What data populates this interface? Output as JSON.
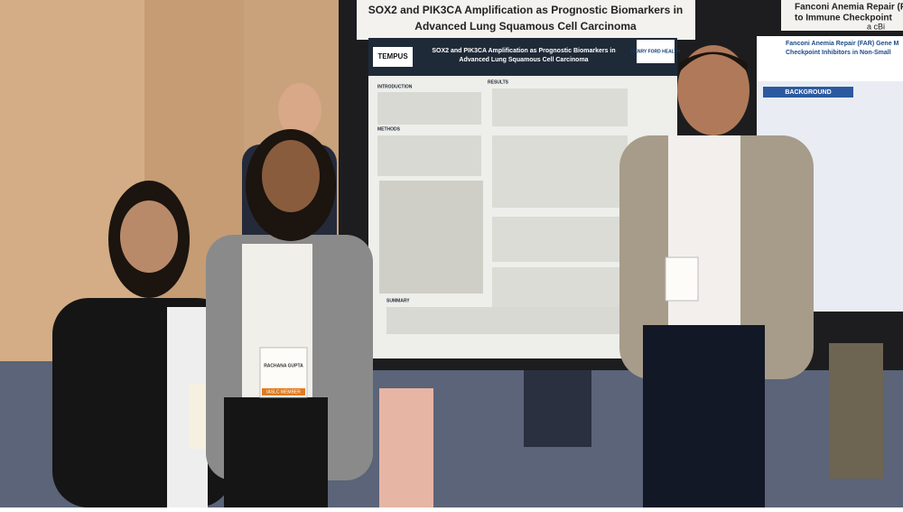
{
  "scene": {
    "sign_left": {
      "line1": "SOX2 and PIK3CA Amplification as Prognostic Biomarkers in",
      "line2": "Advanced Lung Squamous Cell Carcinoma"
    },
    "sign_right": {
      "line1": "Fanconi Anemia Repair (FAR)",
      "line2": "to Immune Checkpoint",
      "line3": "a cBi"
    },
    "poster": {
      "logo_left": "TEMPUS",
      "logo_right": "HENRY FORD HEALTH",
      "title_line1": "SOX2 and PIK3CA Amplification as Prognostic Biomarkers in",
      "title_line2": "Advanced Lung Squamous Cell Carcinoma",
      "sections": [
        "INTRODUCTION",
        "METHODS",
        "RESULTS",
        "SUMMARY"
      ]
    },
    "poster_right": {
      "title_line1": "Fanconi Anemia Repair (FAR) Gene M",
      "title_line2": "Checkpoint Inhibitors in Non-Small",
      "section": "BACKGROUND"
    },
    "badges": {
      "name": "RACHANA GUPTA",
      "member": "IASLC MEMBER"
    }
  }
}
